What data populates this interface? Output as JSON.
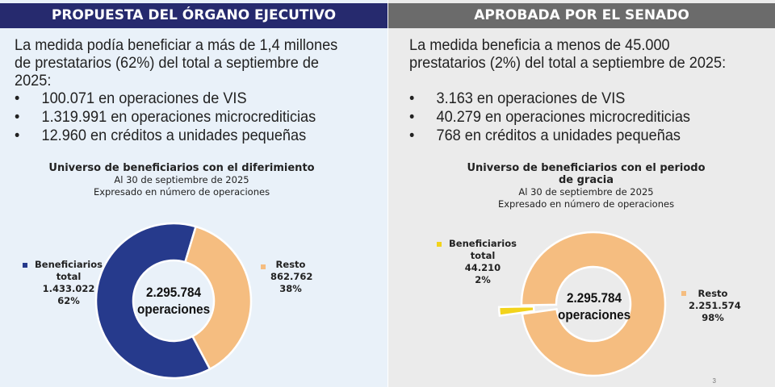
{
  "left": {
    "header": "PROPUESTA DEL ÓRGANO EJECUTIVO",
    "intro": "La medida podía beneficiar a más de 1,4 millones de prestatarios (62%) del total a septiembre de 2025:",
    "bullets": [
      "100.071 en operaciones de VIS",
      "1.319.991 en operaciones microcrediticias",
      "12.960 en créditos a unidades pequeñas"
    ]
  },
  "right": {
    "header": "APROBADA POR EL SENADO",
    "intro": "La medida beneficia a menos de 45.000 prestatarios (2%) del total a septiembre de 2025:",
    "bullets": [
      "3.163 en operaciones de VIS",
      "40.279 en operaciones microcrediticias",
      "768 en créditos a unidades pequeñas"
    ],
    "page_number": "3"
  },
  "chart_data": [
    {
      "type": "pie",
      "variant": "donut",
      "title": "Universo de beneficiarios con el diferimiento",
      "subtitle": [
        "Al 30 de septiembre de 2025",
        "Expresado en número de operaciones"
      ],
      "center_label": [
        "2.295.784",
        "operaciones"
      ],
      "slices": [
        {
          "label": "Beneficiarios total",
          "value": 1433022,
          "value_label": "1.433.022",
          "percent": "62%",
          "color": "#263a8c"
        },
        {
          "label": "Resto",
          "value": 862762,
          "value_label": "862.762",
          "percent": "38%",
          "color": "#f5bd80"
        }
      ]
    },
    {
      "type": "pie",
      "variant": "donut",
      "title": "Universo de beneficiarios con el periodo de gracia",
      "subtitle": [
        "Al 30 de septiembre de 2025",
        "Expresado en número de operaciones"
      ],
      "center_label": [
        "2.295.784",
        "operaciones"
      ],
      "slices": [
        {
          "label": "Beneficiarios total",
          "value": 44210,
          "value_label": "44.210",
          "percent": "2%",
          "color": "#f2d31b",
          "exploded": true
        },
        {
          "label": "Resto",
          "value": 2251574,
          "value_label": "2.251.574",
          "percent": "98%",
          "color": "#f5bd80"
        }
      ]
    }
  ]
}
